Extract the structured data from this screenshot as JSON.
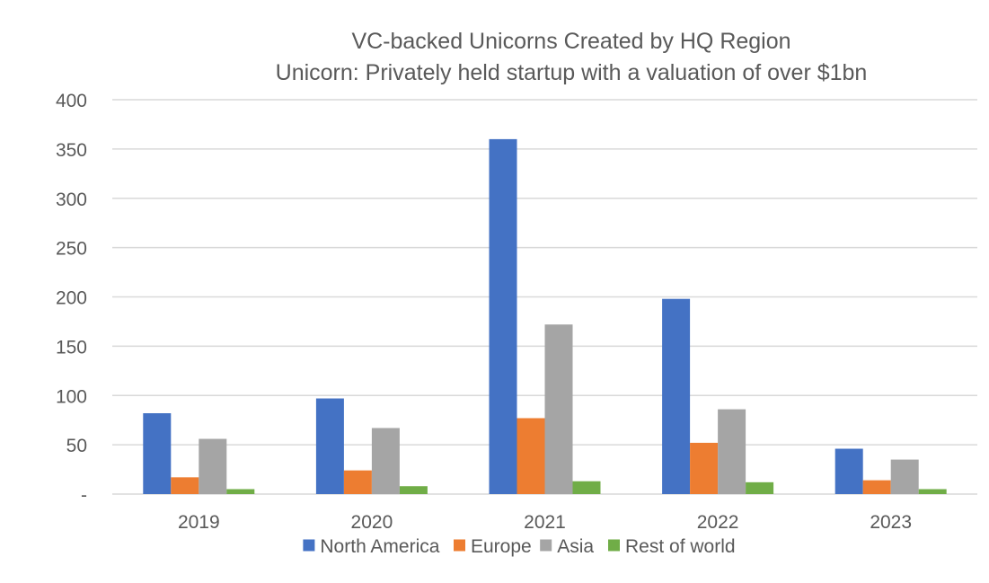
{
  "chart_data": {
    "type": "bar",
    "title": "VC-backed Unicorns Created by HQ Region",
    "subtitle": "Unicorn: Privately held startup with a valuation of over $1bn",
    "xlabel": "",
    "ylabel": "",
    "ylim": [
      0,
      400
    ],
    "yticks": [
      0,
      50,
      100,
      150,
      200,
      250,
      300,
      350,
      400
    ],
    "ytick_labels": [
      "-",
      "50",
      "100",
      "150",
      "200",
      "250",
      "300",
      "350",
      "400"
    ],
    "grid": true,
    "legend_position": "bottom",
    "categories": [
      "2019",
      "2020",
      "2021",
      "2022",
      "2023"
    ],
    "series": [
      {
        "name": "North America",
        "color": "#4472C4",
        "values": [
          82,
          97,
          360,
          198,
          46
        ]
      },
      {
        "name": "Europe",
        "color": "#ED7D31",
        "values": [
          17,
          24,
          77,
          52,
          14
        ]
      },
      {
        "name": "Asia",
        "color": "#A5A5A5",
        "values": [
          56,
          67,
          172,
          86,
          35
        ]
      },
      {
        "name": "Rest of world",
        "color": "#70AD47",
        "values": [
          5,
          8,
          13,
          12,
          5
        ]
      }
    ]
  }
}
